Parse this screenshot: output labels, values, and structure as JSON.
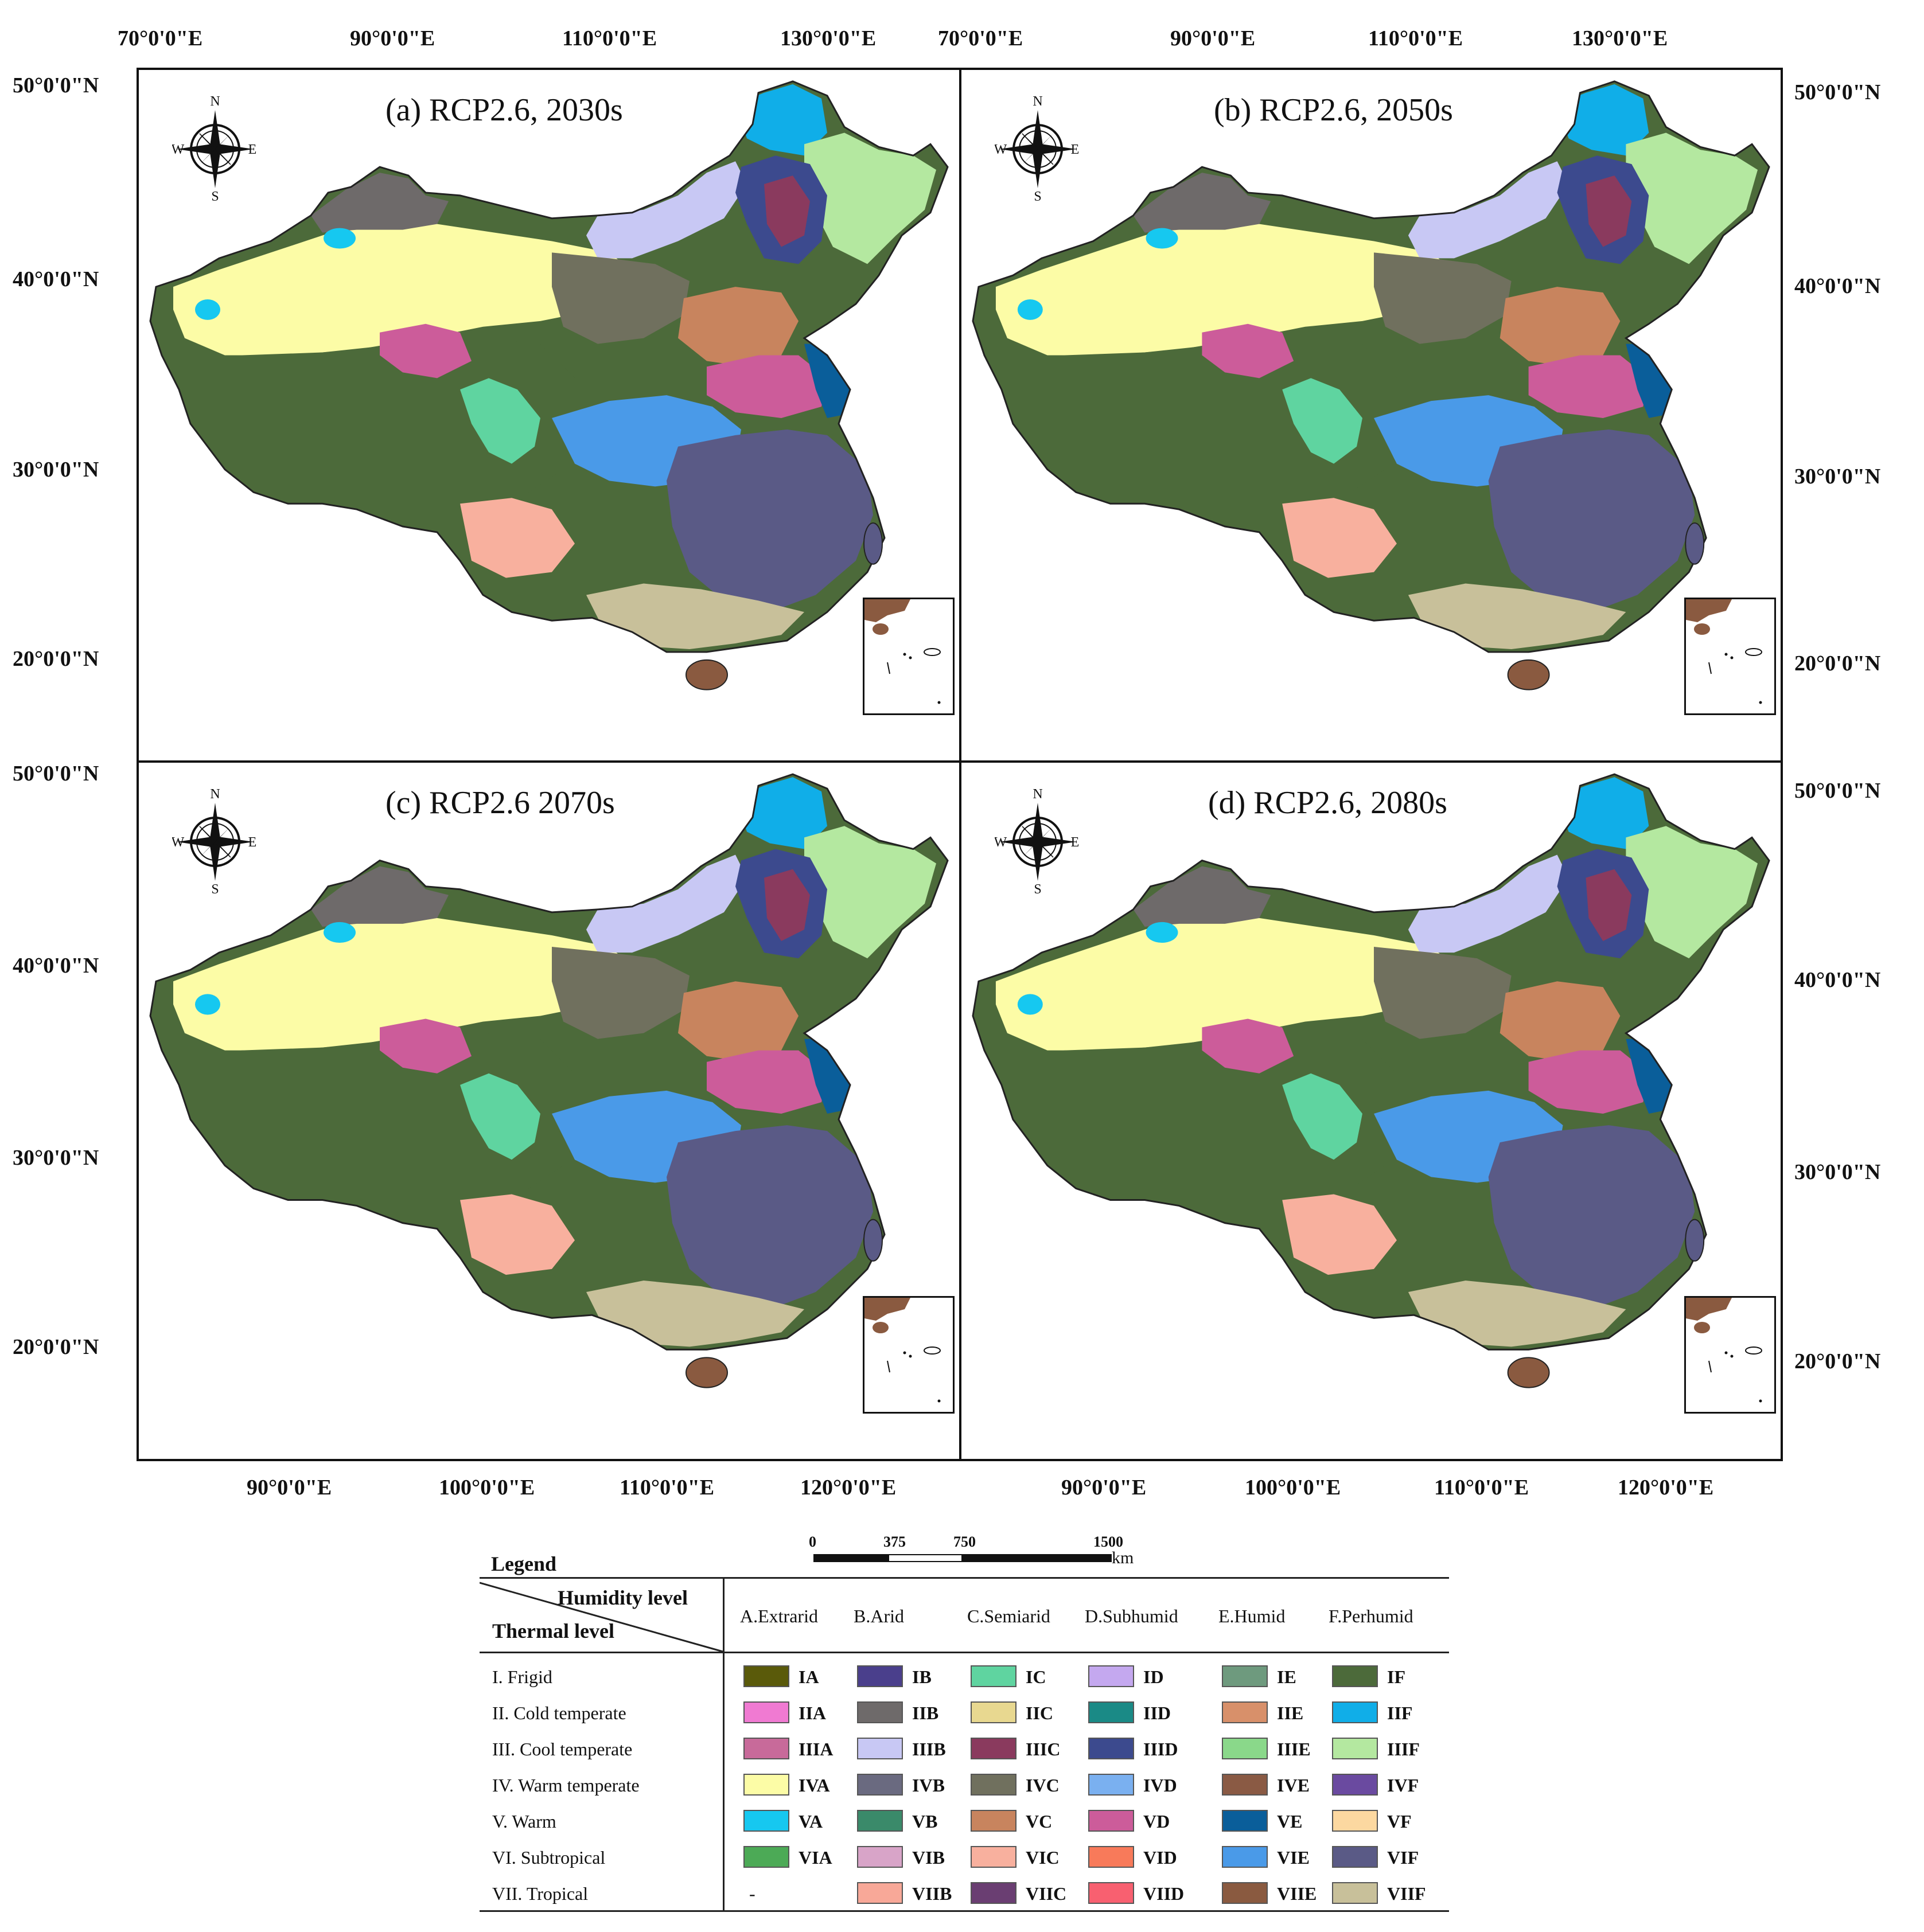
{
  "panels": [
    {
      "title": "(a) RCP2.6, 2030s"
    },
    {
      "title": "(b) RCP2.6, 2050s"
    },
    {
      "title": "(c) RCP2.6 2070s"
    },
    {
      "title": "(d) RCP2.6, 2080s"
    }
  ],
  "axes": {
    "top_lon": [
      "70°0'0\"E",
      "90°0'0\"E",
      "110°0'0\"E",
      "130°0'0\"E",
      "70°0'0\"E",
      "90°0'0\"E",
      "110°0'0\"E",
      "130°0'0\"E"
    ],
    "bottom_lon": [
      "90°0'0\"E",
      "100°0'0\"E",
      "110°0'0\"E",
      "120°0'0\"E",
      "90°0'0\"E",
      "100°0'0\"E",
      "110°0'0\"E",
      "120°0'0\"E"
    ],
    "left_lat": [
      "50°0'0\"N",
      "40°0'0\"N",
      "30°0'0\"N",
      "20°0'0\"N",
      "50°0'0\"N",
      "40°0'0\"N",
      "30°0'0\"N",
      "20°0'0\"N"
    ],
    "right_lat": [
      "50°0'0\"N",
      "40°0'0\"N",
      "30°0'0\"N",
      "20°0'0\"N",
      "50°0'0\"N",
      "40°0'0\"N",
      "30°0'0\"N",
      "20°0'0\"N"
    ]
  },
  "compass": {
    "n": "N",
    "s": "S",
    "e": "E",
    "w": "W"
  },
  "scale_bar": {
    "labels": [
      "0",
      "375",
      "750",
      "1500"
    ],
    "unit": "km"
  },
  "legend": {
    "title": "Legend",
    "humidity_header": "Humidity level",
    "thermal_header": "Thermal level",
    "humidity_levels": [
      "A.Extrarid",
      "B.Arid",
      "C.Semiarid",
      "D.Subhumid",
      "E.Humid",
      "F.Perhumid"
    ],
    "thermal_levels": [
      "I. Frigid",
      "II. Cold temperate",
      "III. Cool temperate",
      "IV. Warm temperate",
      "V. Warm",
      "VI. Subtropical",
      "VII. Tropical"
    ],
    "rows": [
      [
        {
          "code": "IA",
          "color": "#5a5a0a"
        },
        {
          "code": "IB",
          "color": "#4a3f8c"
        },
        {
          "code": "IC",
          "color": "#5fd4a0"
        },
        {
          "code": "ID",
          "color": "#c4a8ef"
        },
        {
          "code": "IE",
          "color": "#6e9a7e"
        },
        {
          "code": "IF",
          "color": "#4c6a3a"
        }
      ],
      [
        {
          "code": "IIA",
          "color": "#f07ad2"
        },
        {
          "code": "IIB",
          "color": "#6e6a6a"
        },
        {
          "code": "IIC",
          "color": "#e8d890"
        },
        {
          "code": "IID",
          "color": "#1a8a86"
        },
        {
          "code": "IIE",
          "color": "#d8906a"
        },
        {
          "code": "IIF",
          "color": "#10aee8"
        }
      ],
      [
        {
          "code": "IIIA",
          "color": "#c86a9a"
        },
        {
          "code": "IIIB",
          "color": "#c8c8f4"
        },
        {
          "code": "IIIC",
          "color": "#8a3a5e"
        },
        {
          "code": "IIID",
          "color": "#3c4a8e"
        },
        {
          "code": "IIIE",
          "color": "#8ad88a"
        },
        {
          "code": "IIIF",
          "color": "#b4e8a0"
        }
      ],
      [
        {
          "code": "IVA",
          "color": "#fcfca6"
        },
        {
          "code": "IVB",
          "color": "#6a6a80"
        },
        {
          "code": "IVC",
          "color": "#70705e"
        },
        {
          "code": "IVD",
          "color": "#7ab0f0"
        },
        {
          "code": "IVE",
          "color": "#8a5a44"
        },
        {
          "code": "IVF",
          "color": "#6a4aa0"
        }
      ],
      [
        {
          "code": "VA",
          "color": "#16c8f0"
        },
        {
          "code": "VB",
          "color": "#3a8a6a"
        },
        {
          "code": "VC",
          "color": "#c8845e"
        },
        {
          "code": "VD",
          "color": "#cc5c9a"
        },
        {
          "code": "VE",
          "color": "#0a5e9a"
        },
        {
          "code": "VF",
          "color": "#fcd8a0"
        }
      ],
      [
        {
          "code": "VIA",
          "color": "#4caa56"
        },
        {
          "code": "VIB",
          "color": "#d8a4c8"
        },
        {
          "code": "VIC",
          "color": "#f8b09e"
        },
        {
          "code": "VID",
          "color": "#f87a5a"
        },
        {
          "code": "VIE",
          "color": "#4a9ae8"
        },
        {
          "code": "VIF",
          "color": "#5a5a86"
        }
      ],
      [
        {
          "code": "-",
          "color": ""
        },
        {
          "code": "VIIB",
          "color": "#f8a898"
        },
        {
          "code": "VIIC",
          "color": "#6a3e72"
        },
        {
          "code": "VIID",
          "color": "#f86070"
        },
        {
          "code": "VIIE",
          "color": "#8a5a40"
        },
        {
          "code": "VIIF",
          "color": "#c8c09a"
        }
      ]
    ]
  },
  "map_colors": {
    "plateau": "#4c6a3a",
    "desert": "#fcfca6",
    "northeast_forest": "#b4e8a0",
    "north_cold": "#10aee8",
    "inner_mongolia": "#c8c8f4",
    "northeast_core": "#3c4a8e",
    "northeast_core_inner": "#8a3a5e",
    "north_china": "#c8845e",
    "yangtze": "#cc5c9a",
    "east_coast": "#0a5e9a",
    "central": "#4a9ae8",
    "southeast": "#5a5a86",
    "south_coast": "#c8c09a",
    "hainan": "#8a5a40",
    "southwest": "#f8b09e",
    "loess": "#70705e",
    "xinjiang_gray": "#6e6a6a",
    "qaidam": "#cc5c9a",
    "lake": "#16c8f0",
    "semiarid_ribbon": "#5fd4a0",
    "outline": "#222222"
  }
}
